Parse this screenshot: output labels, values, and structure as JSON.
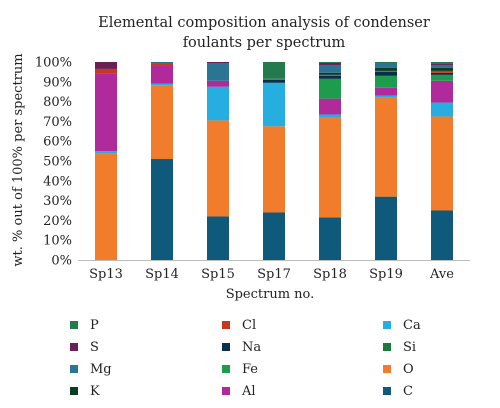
{
  "chart_data": {
    "type": "bar",
    "stacked": true,
    "title_lines": [
      "Elemental composition analysis of condenser",
      "foulants per spectrum"
    ],
    "xlabel": "Spectrum no.",
    "ylabel": "wt. % out of 100% per spectrum",
    "ylim": [
      0,
      100
    ],
    "yticks": [
      "0%",
      "10%",
      "20%",
      "30%",
      "40%",
      "50%",
      "60%",
      "70%",
      "80%",
      "90%",
      "100%"
    ],
    "grid": false,
    "legend_position": "bottom",
    "categories": [
      "Sp13",
      "Sp14",
      "Sp15",
      "Sp17",
      "Sp18",
      "Sp19",
      "Ave"
    ],
    "series": [
      {
        "name": "C",
        "color": "#0f5a7a",
        "values": [
          0,
          51,
          22,
          24,
          21.5,
          32,
          25
        ]
      },
      {
        "name": "O",
        "color": "#f07c2c",
        "values": [
          54,
          37,
          48.5,
          43.5,
          50.5,
          50,
          47.5
        ]
      },
      {
        "name": "Si",
        "color": "#1a7a3a",
        "values": [
          0,
          0,
          0,
          0,
          0,
          0,
          0
        ]
      },
      {
        "name": "Ca",
        "color": "#27aee0",
        "values": [
          1,
          1,
          17,
          22,
          1.5,
          1,
          7
        ]
      },
      {
        "name": "Al",
        "color": "#b02a9b",
        "values": [
          39,
          9,
          3,
          0,
          8,
          4,
          11
        ]
      },
      {
        "name": "Fe",
        "color": "#1d9c4e",
        "values": [
          0,
          0,
          0,
          0,
          10,
          6,
          3
        ]
      },
      {
        "name": "Na",
        "color": "#0a2f4a",
        "values": [
          0,
          0,
          0,
          1.5,
          1.5,
          2,
          1
        ]
      },
      {
        "name": "Cl",
        "color": "#c8381e",
        "values": [
          2.5,
          1,
          0,
          0,
          0.5,
          0.5,
          1
        ]
      },
      {
        "name": "K",
        "color": "#0b3d22",
        "values": [
          0,
          0,
          0,
          0,
          1,
          1.5,
          1.5
        ]
      },
      {
        "name": "Mg",
        "color": "#2c7494",
        "values": [
          0,
          1,
          9,
          0.5,
          4,
          2.5,
          1.5
        ]
      },
      {
        "name": "S",
        "color": "#6b1f57",
        "values": [
          3.5,
          0,
          0.5,
          0,
          1,
          0,
          0.5
        ]
      },
      {
        "name": "P",
        "color": "#237a4a",
        "values": [
          0,
          0,
          0,
          8.5,
          0.5,
          0.5,
          1
        ]
      }
    ],
    "legend_order": [
      "P",
      "Cl",
      "Ca",
      "S",
      "Na",
      "Si",
      "Mg",
      "Fe",
      "O",
      "K",
      "Al",
      "C"
    ]
  }
}
